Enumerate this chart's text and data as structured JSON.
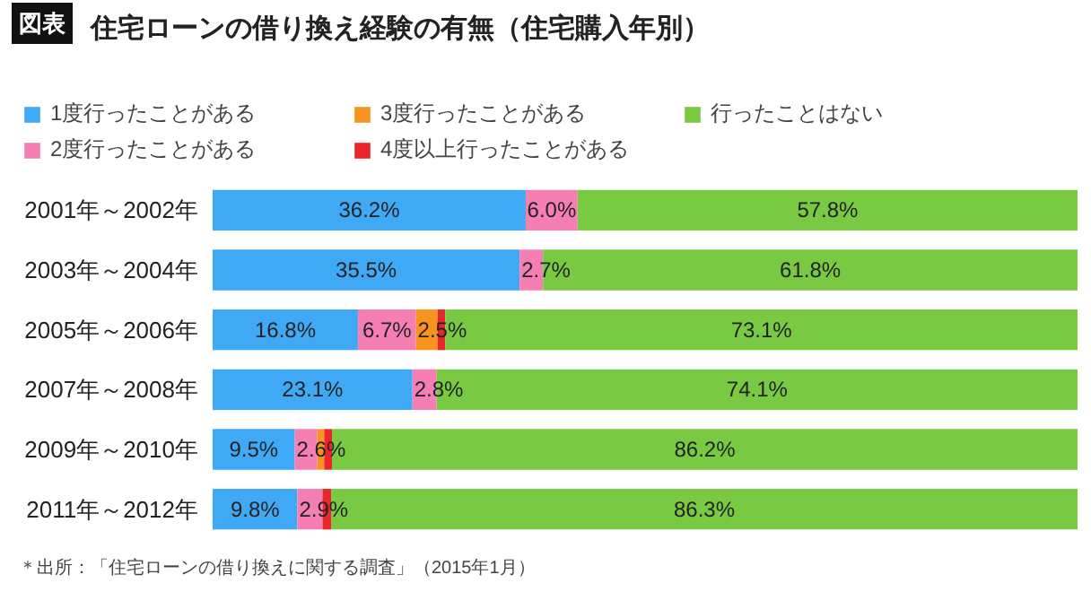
{
  "chart_data": {
    "type": "bar",
    "orientation": "horizontal",
    "stacked": true,
    "title": "住宅ローンの借り換え経験の有無（住宅購入年別）",
    "annotations": [
      "図表",
      "＊出所：「住宅ローンの借り換えに関する調査」（2015年1月）"
    ],
    "categories": [
      "2001年～2002年",
      "2003年～2004年",
      "2005年～2006年",
      "2007年～2008年",
      "2009年～2010年",
      "2011年～2012年"
    ],
    "xlim": [
      0,
      100
    ],
    "tick_labels": "y",
    "grid": false,
    "legend": "top",
    "series": [
      {
        "name": "1度行ったことがある",
        "color": "#3fa9f5",
        "values": [
          36.2,
          35.5,
          16.8,
          23.1,
          9.5,
          9.8
        ],
        "value_labels": [
          "36.2%",
          "35.5%",
          "16.8%",
          "23.1%",
          "9.5%",
          "9.8%"
        ]
      },
      {
        "name": "2度行ったことがある",
        "color": "#f57fb3",
        "values": [
          6.0,
          2.7,
          6.7,
          2.8,
          2.6,
          2.9
        ],
        "value_labels": [
          "6.0%",
          "2.7%",
          "6.7%",
          "2.8%",
          "2.6%",
          "2.9%"
        ]
      },
      {
        "name": "3度行ったことがある",
        "color": "#f7931e",
        "values": [
          0,
          0,
          2.5,
          0,
          0.8,
          0
        ],
        "value_labels": [
          null,
          null,
          "2.5%",
          null,
          null,
          null
        ]
      },
      {
        "name": "4度以上行ったことがある",
        "color": "#e8262b",
        "values": [
          0,
          0,
          0.9,
          0,
          0.9,
          1.0
        ],
        "value_labels": [
          null,
          null,
          null,
          null,
          null,
          null
        ]
      },
      {
        "name": "行ったことはない",
        "color": "#7ac943",
        "values": [
          57.8,
          61.8,
          73.1,
          74.1,
          86.2,
          86.3
        ],
        "value_labels": [
          "57.8%",
          "61.8%",
          "73.1%",
          "74.1%",
          "86.2%",
          "86.3%"
        ]
      }
    ]
  }
}
